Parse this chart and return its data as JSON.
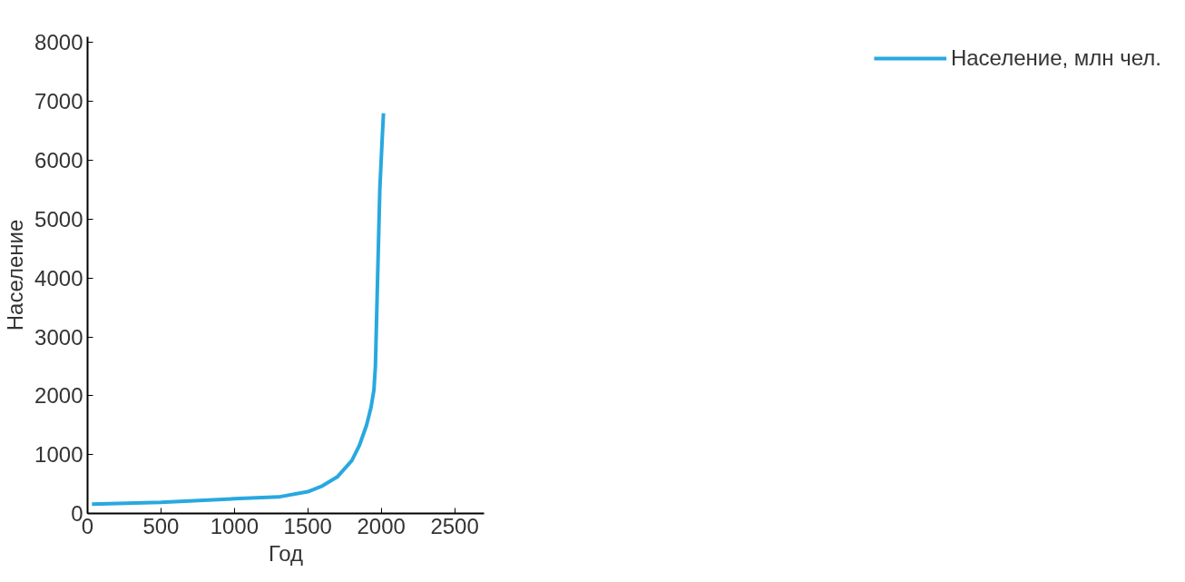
{
  "chart_data": {
    "type": "line",
    "xlabel": "Год",
    "ylabel": "Население",
    "x": [
      30,
      500,
      1000,
      1300,
      1500,
      1600,
      1700,
      1800,
      1850,
      1900,
      1930,
      1950,
      1960,
      1970,
      1980,
      1990,
      2005,
      2015
    ],
    "series": [
      {
        "name": "Население, млн чел.",
        "color": "#29a8df",
        "values": [
          160,
          190,
          250,
          280,
          370,
          470,
          620,
          900,
          1150,
          1500,
          1800,
          2100,
          2500,
          3500,
          4500,
          5500,
          6300,
          6800
        ]
      }
    ],
    "xlim": [
      0,
      2700
    ],
    "ylim": [
      0,
      8100
    ],
    "xticks": [
      0,
      500,
      1000,
      1500,
      2000,
      2500
    ],
    "yticks": [
      0,
      1000,
      2000,
      3000,
      4000,
      5000,
      6000,
      7000,
      8000
    ],
    "grid": false,
    "legend": "right",
    "marker": "none",
    "line_style": "solid"
  }
}
